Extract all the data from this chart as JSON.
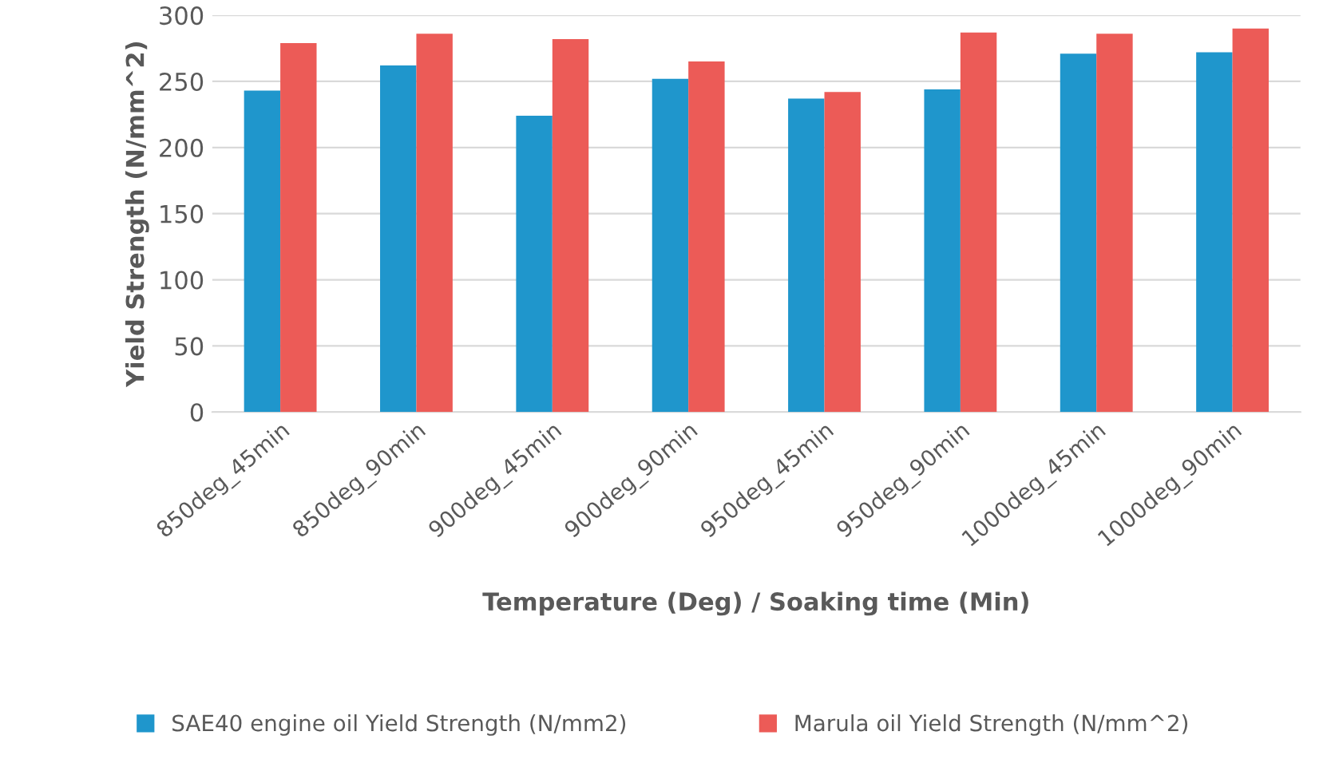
{
  "chart_data": {
    "type": "bar",
    "xlabel": "Temperature (Deg) / Soaking time (Min)",
    "ylabel": "Yield Strength (N/mm^2)",
    "categories": [
      "850deg_45min",
      "850deg_90min",
      "900deg_45min",
      "900deg_90min",
      "950deg_45min",
      "950deg_90min",
      "1000deg_45min",
      "1000deg_90min"
    ],
    "series": [
      {
        "name": "SAE40 engine oil Yield Strength (N/mm2)",
        "color": "#1f96cc",
        "values": [
          243,
          262,
          224,
          252,
          237,
          244,
          271,
          272
        ]
      },
      {
        "name": "Marula oil Yield Strength (N/mm^2)",
        "color": "#ec5b57",
        "values": [
          279,
          286,
          282,
          265,
          242,
          287,
          286,
          290
        ]
      }
    ],
    "ylim": [
      0,
      300
    ],
    "yticks": [
      0,
      50,
      100,
      150,
      200,
      250,
      300
    ],
    "grid": "y",
    "legend": "bottom"
  }
}
